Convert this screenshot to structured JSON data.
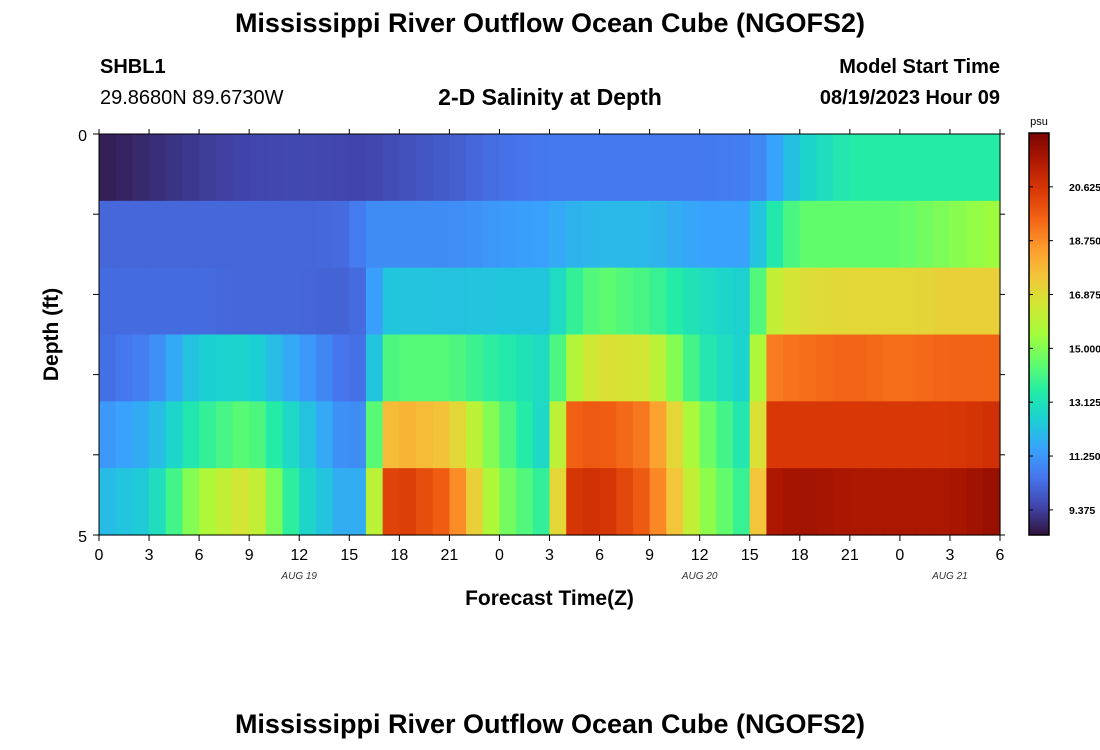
{
  "header": {
    "title": "Mississippi River Outflow Ocean Cube (NGOFS2)",
    "station_id": "SHBL1",
    "station_coords": "29.8680N  89.6730W",
    "subtitle": "2-D Salinity at Depth",
    "model_start_label": "Model Start Time",
    "model_start_value": "08/19/2023 Hour 09"
  },
  "footer": {
    "title_repeat": "Mississippi River Outflow Ocean Cube (NGOFS2)"
  },
  "colors": {
    "colormap": [
      "#30123b",
      "#4145ab",
      "#4675ed",
      "#39a2fc",
      "#1bcfd4",
      "#24eca6",
      "#61fc6c",
      "#a4fc3b",
      "#d1e834",
      "#f3c63a",
      "#fe9b2d",
      "#f36315",
      "#d93806",
      "#b11901",
      "#7a0402"
    ]
  },
  "chart_data": {
    "type": "heatmap",
    "title": "2-D Salinity at Depth",
    "xlabel": "Forecast Time(Z)",
    "ylabel": "Depth (ft)",
    "x_tick_labels": [
      "0",
      "3",
      "6",
      "9",
      "12",
      "15",
      "18",
      "21",
      "0",
      "3",
      "6",
      "9",
      "12",
      "15",
      "18",
      "21",
      "0",
      "3",
      "6"
    ],
    "x_hours_from_start": [
      0,
      3,
      6,
      9,
      12,
      15,
      18,
      21,
      24,
      27,
      30,
      33,
      36,
      39,
      42,
      45,
      48,
      51,
      54
    ],
    "date_labels": [
      {
        "label": "AUG 19",
        "at_hour": 12
      },
      {
        "label": "AUG 20",
        "at_hour": 36
      },
      {
        "label": "AUG 21",
        "at_hour": 51
      }
    ],
    "y_tick_labels": [
      "0",
      "5"
    ],
    "y_range": [
      0,
      5
    ],
    "depth_layers": 6,
    "colorbar": {
      "unit": "psu",
      "range": [
        8.5,
        22.5
      ],
      "tick_labels": [
        "20.625",
        "18.750",
        "16.875",
        "15.000",
        "13.125",
        "11.250",
        "9.375"
      ],
      "tick_values": [
        20.625,
        18.75,
        16.875,
        15.0,
        13.125,
        11.25,
        9.375
      ]
    },
    "knots_hours": [
      0,
      3,
      6,
      9,
      12,
      15,
      16,
      17,
      18,
      21,
      24,
      27,
      28,
      30,
      33,
      36,
      39,
      40,
      42,
      45,
      48,
      51,
      54
    ],
    "layers": [
      {
        "name": "layer-1",
        "values": [
          8.7,
          9.0,
          9.3,
          9.5,
          9.6,
          9.5,
          9.5,
          9.6,
          9.7,
          10.0,
          10.4,
          10.6,
          10.6,
          10.6,
          10.6,
          10.6,
          10.7,
          11.2,
          12.5,
          13.5,
          13.5,
          13.5,
          13.5
        ]
      },
      {
        "name": "layer-2",
        "values": [
          10.2,
          10.2,
          10.2,
          10.2,
          10.2,
          10.3,
          11.0,
          11.0,
          11.0,
          11.0,
          11.3,
          11.5,
          11.8,
          12.0,
          12.0,
          11.5,
          11.5,
          13.0,
          14.5,
          14.5,
          14.5,
          15.0,
          15.5
        ]
      },
      {
        "name": "layer-3",
        "values": [
          10.3,
          10.3,
          10.3,
          10.2,
          10.2,
          10.1,
          10.5,
          12.3,
          12.3,
          12.2,
          12.3,
          12.3,
          13.5,
          14.5,
          14.0,
          13.0,
          12.5,
          16.0,
          16.8,
          17.0,
          17.0,
          17.2,
          17.2
        ]
      },
      {
        "name": "layer-4",
        "values": [
          10.3,
          10.8,
          12.5,
          12.7,
          11.5,
          10.3,
          10.5,
          14.0,
          14.3,
          14.3,
          13.5,
          12.8,
          15.5,
          16.8,
          16.5,
          13.5,
          12.5,
          19.0,
          19.3,
          19.5,
          19.3,
          19.5,
          19.5
        ]
      },
      {
        "name": "layer-5",
        "values": [
          11.2,
          11.8,
          13.6,
          14.5,
          12.5,
          10.8,
          11.2,
          17.5,
          18.0,
          17.5,
          14.5,
          12.5,
          19.5,
          19.8,
          19.0,
          15.0,
          13.0,
          20.5,
          20.5,
          20.5,
          20.5,
          20.5,
          20.8
        ]
      },
      {
        "name": "layer-6",
        "values": [
          12.0,
          12.5,
          15.5,
          16.8,
          13.0,
          11.5,
          12.0,
          20.0,
          20.5,
          19.5,
          15.0,
          13.5,
          20.5,
          20.8,
          19.5,
          15.5,
          13.5,
          21.5,
          21.8,
          21.6,
          21.6,
          21.6,
          22.0
        ]
      }
    ],
    "grid": false
  }
}
